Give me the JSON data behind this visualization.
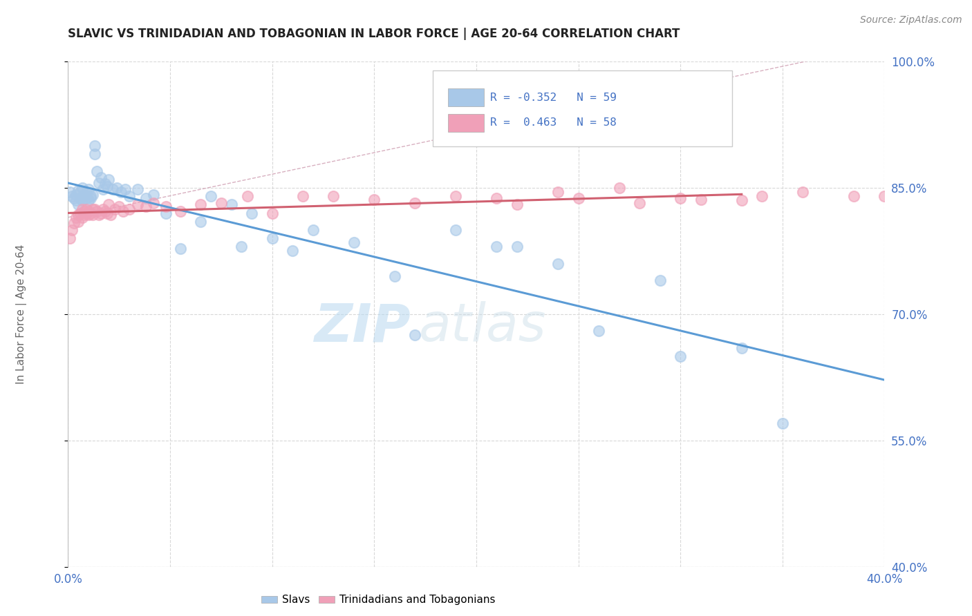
{
  "title": "SLAVIC VS TRINIDADIAN AND TOBAGONIAN IN LABOR FORCE | AGE 20-64 CORRELATION CHART",
  "source": "Source: ZipAtlas.com",
  "ylabel": "In Labor Force | Age 20-64",
  "xlim": [
    0.0,
    0.4
  ],
  "ylim": [
    0.4,
    1.0
  ],
  "xticks": [
    0.0,
    0.05,
    0.1,
    0.15,
    0.2,
    0.25,
    0.3,
    0.35,
    0.4
  ],
  "yticks": [
    0.4,
    0.55,
    0.7,
    0.85,
    1.0
  ],
  "color_slavs": "#a8c8e8",
  "color_trini": "#f0a0b8",
  "color_line_slavs": "#5b9bd5",
  "color_line_trini": "#d06070",
  "color_diag": "#c8b8c8",
  "color_grid": "#d8d8d8",
  "color_text": "#4472c4",
  "watermark_zip": "ZIP",
  "watermark_atlas": "atlas",
  "slavs_x": [
    0.001,
    0.002,
    0.003,
    0.004,
    0.004,
    0.005,
    0.005,
    0.006,
    0.006,
    0.007,
    0.007,
    0.008,
    0.008,
    0.009,
    0.009,
    0.01,
    0.01,
    0.011,
    0.011,
    0.012,
    0.013,
    0.013,
    0.014,
    0.015,
    0.016,
    0.017,
    0.018,
    0.019,
    0.02,
    0.022,
    0.024,
    0.026,
    0.028,
    0.03,
    0.034,
    0.038,
    0.042,
    0.048,
    0.055,
    0.065,
    0.07,
    0.08,
    0.085,
    0.09,
    0.1,
    0.11,
    0.12,
    0.14,
    0.16,
    0.19,
    0.21,
    0.24,
    0.26,
    0.29,
    0.3,
    0.22,
    0.17,
    0.33,
    0.35
  ],
  "slavs_y": [
    0.845,
    0.84,
    0.838,
    0.842,
    0.835,
    0.847,
    0.83,
    0.838,
    0.845,
    0.835,
    0.85,
    0.84,
    0.843,
    0.838,
    0.843,
    0.835,
    0.848,
    0.838,
    0.84,
    0.842,
    0.9,
    0.89,
    0.87,
    0.856,
    0.862,
    0.848,
    0.855,
    0.852,
    0.86,
    0.848,
    0.85,
    0.845,
    0.848,
    0.84,
    0.848,
    0.838,
    0.842,
    0.82,
    0.778,
    0.81,
    0.84,
    0.83,
    0.78,
    0.82,
    0.79,
    0.775,
    0.8,
    0.785,
    0.745,
    0.8,
    0.78,
    0.76,
    0.68,
    0.74,
    0.65,
    0.78,
    0.675,
    0.66,
    0.57
  ],
  "trini_x": [
    0.001,
    0.002,
    0.003,
    0.004,
    0.005,
    0.005,
    0.006,
    0.007,
    0.007,
    0.008,
    0.008,
    0.009,
    0.009,
    0.01,
    0.01,
    0.011,
    0.012,
    0.012,
    0.013,
    0.014,
    0.015,
    0.016,
    0.017,
    0.018,
    0.019,
    0.02,
    0.021,
    0.023,
    0.025,
    0.027,
    0.03,
    0.034,
    0.038,
    0.042,
    0.048,
    0.055,
    0.065,
    0.075,
    0.088,
    0.1,
    0.115,
    0.13,
    0.15,
    0.17,
    0.19,
    0.21,
    0.24,
    0.27,
    0.3,
    0.33,
    0.36,
    0.385,
    0.4,
    0.34,
    0.31,
    0.28,
    0.25,
    0.22
  ],
  "trini_y": [
    0.79,
    0.8,
    0.808,
    0.815,
    0.818,
    0.81,
    0.82,
    0.815,
    0.825,
    0.818,
    0.822,
    0.82,
    0.825,
    0.818,
    0.822,
    0.82,
    0.825,
    0.818,
    0.825,
    0.822,
    0.818,
    0.82,
    0.825,
    0.822,
    0.82,
    0.83,
    0.818,
    0.825,
    0.828,
    0.822,
    0.825,
    0.83,
    0.828,
    0.832,
    0.828,
    0.822,
    0.83,
    0.832,
    0.84,
    0.82,
    0.84,
    0.84,
    0.836,
    0.832,
    0.84,
    0.838,
    0.845,
    0.85,
    0.838,
    0.835,
    0.845,
    0.84,
    0.84,
    0.84,
    0.836,
    0.832,
    0.838,
    0.83
  ]
}
